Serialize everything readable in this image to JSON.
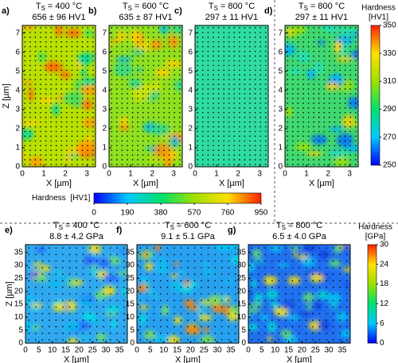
{
  "chart_data": [
    {
      "type": "heatmap",
      "panel": "a)",
      "title_main": "T",
      "title_sub": "S",
      "title_rest": "= 400 °C",
      "subtitle": "656 ± 96 HV1",
      "xlabel": "X [µm]",
      "ylabel": "Z [µm]",
      "xlim": [
        0,
        3.4
      ],
      "ylim": [
        0,
        7.4
      ],
      "xticks": [
        0,
        1,
        2,
        3
      ],
      "yticks": [
        0,
        1,
        2,
        3,
        4,
        5,
        6,
        7
      ]
    },
    {
      "type": "heatmap",
      "panel": "b)",
      "title_main": "T",
      "title_sub": "S",
      "title_rest": "= 600 °C",
      "subtitle": "635 ± 87 HV1",
      "xlabel": "X [µm]",
      "xlim": [
        0,
        3.4
      ],
      "ylim": [
        0,
        7.4
      ],
      "xticks": [
        0,
        1,
        2,
        3
      ],
      "yticks": [
        0,
        1,
        2,
        3,
        4,
        5,
        6,
        7
      ]
    },
    {
      "type": "heatmap",
      "panel": "c)",
      "title_main": "T",
      "title_sub": "S",
      "title_rest": "= 800 °C",
      "subtitle": "297 ± 11 HV1",
      "xlabel": "X [µm]",
      "xlim": [
        0,
        3.4
      ],
      "ylim": [
        0,
        7.4
      ],
      "xticks": [
        0,
        1,
        2,
        3
      ],
      "yticks": [
        0,
        1,
        2,
        3,
        4,
        5,
        6,
        7
      ]
    },
    {
      "type": "heatmap",
      "panel": "d)",
      "title_main": "T",
      "title_sub": "S",
      "title_rest": "= 800 °C",
      "subtitle": "297 ± 11 HV1",
      "xlabel": "X [µm]",
      "xlim": [
        0,
        3.4
      ],
      "ylim": [
        0,
        7.4
      ],
      "xticks": [
        0,
        1,
        2,
        3
      ],
      "yticks": [
        0,
        1,
        2,
        3,
        4,
        5,
        6,
        7
      ]
    },
    {
      "type": "colorbar",
      "orientation": "vertical",
      "title": "Hardness",
      "unit": "[HV1]",
      "ylim": [
        250,
        350
      ],
      "yticks": [
        250,
        270,
        290,
        310,
        330,
        350
      ],
      "colors": [
        "#0000ff",
        "#00c8ff",
        "#00e070",
        "#9ee000",
        "#ffe000",
        "#ff2000"
      ]
    },
    {
      "type": "colorbar",
      "orientation": "horizontal",
      "title": "Hardness  [HV1]",
      "xlim": [
        0,
        950
      ],
      "xticks": [
        0,
        190,
        380,
        570,
        760,
        950
      ],
      "colors": [
        "#0000ff",
        "#00c8ff",
        "#00e070",
        "#9ee000",
        "#ffe000",
        "#ff2000"
      ]
    },
    {
      "type": "heatmap",
      "panel": "e)",
      "title_main": "T",
      "title_sub": "S",
      "title_rest": "= 400 °C",
      "subtitle": "8.8 ± 4.2 GPa",
      "xlabel": "X [µm]",
      "ylabel": "Z [µm]",
      "xlim": [
        0,
        38
      ],
      "ylim": [
        0,
        38
      ],
      "xticks": [
        0,
        5,
        10,
        15,
        20,
        25,
        30,
        35
      ],
      "yticks": [
        0,
        5,
        10,
        15,
        20,
        25,
        30,
        35
      ]
    },
    {
      "type": "heatmap",
      "panel": "f)",
      "title_main": "T",
      "title_sub": "S",
      "title_rest": "= 600 °C",
      "subtitle": "9.1 ± 5.1 GPa",
      "xlabel": "X [µm]",
      "xlim": [
        0,
        38
      ],
      "ylim": [
        0,
        38
      ],
      "xticks": [
        0,
        5,
        10,
        15,
        20,
        25,
        30,
        35
      ],
      "yticks": [
        0,
        5,
        10,
        15,
        20,
        25,
        30,
        35
      ]
    },
    {
      "type": "heatmap",
      "panel": "g)",
      "title_main": "T",
      "title_sub": "S",
      "title_rest": "= 800 °C",
      "subtitle": "6.5 ± 4.0 GPa",
      "xlabel": "X [µm]",
      "xlim": [
        0,
        38
      ],
      "ylim": [
        0,
        38
      ],
      "xticks": [
        0,
        5,
        10,
        15,
        20,
        25,
        30,
        35
      ],
      "yticks": [
        0,
        5,
        10,
        15,
        20,
        25,
        30,
        35
      ]
    },
    {
      "type": "colorbar",
      "orientation": "vertical",
      "title": "Hardness",
      "unit": "[GPa]",
      "ylim": [
        0,
        30
      ],
      "yticks": [
        0,
        6,
        12,
        18,
        24,
        30
      ],
      "colors": [
        "#0000ff",
        "#00c8ff",
        "#00e070",
        "#9ee000",
        "#ffe000",
        "#ff2000"
      ]
    }
  ]
}
